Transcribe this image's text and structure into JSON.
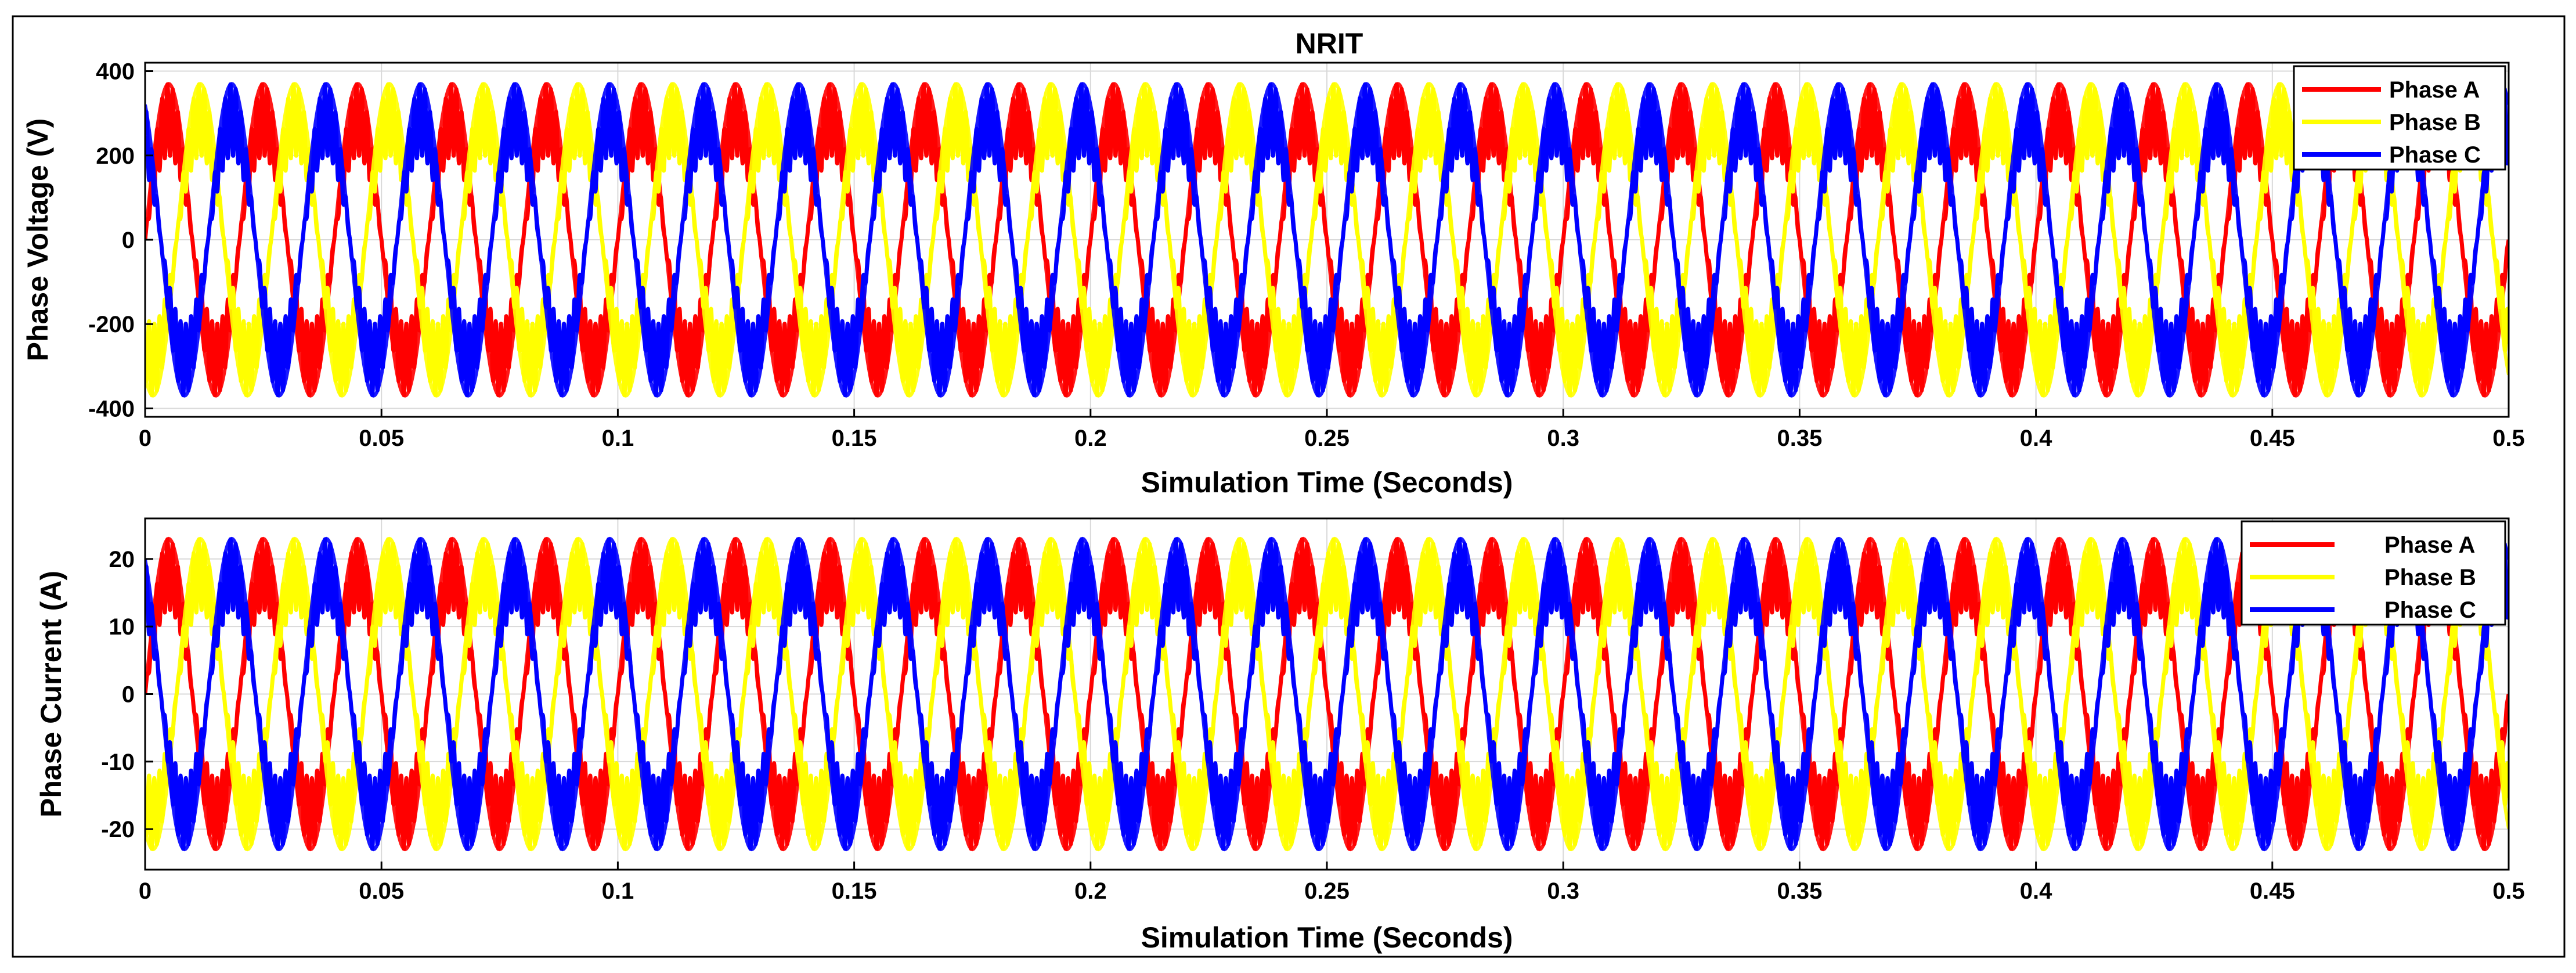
{
  "chart_data": [
    {
      "type": "line",
      "title": "NRIT",
      "xlabel": "Simulation Time (Seconds)",
      "ylabel": "Phase Voltage (V)",
      "xlim": [
        0,
        0.5
      ],
      "ylim": [
        -420,
        420
      ],
      "xticks": [
        0,
        0.05,
        0.1,
        0.15,
        0.2,
        0.25,
        0.3,
        0.35,
        0.4,
        0.45,
        0.5
      ],
      "xtick_labels": [
        "0",
        "0.05",
        "0.1",
        "0.15",
        "0.2",
        "0.25",
        "0.3",
        "0.35",
        "0.4",
        "0.45",
        "0.5"
      ],
      "yticks": [
        400,
        200,
        0,
        -200,
        -400
      ],
      "ytick_labels": [
        "400",
        "200",
        "0",
        "-200",
        "-400"
      ],
      "grid": true,
      "legend_position": "top-right",
      "frequency_hz": 50,
      "series": [
        {
          "name": "Phase A",
          "color": "#ff0000",
          "amplitude_peak": 370,
          "amplitude_inner": 200,
          "phase_deg": 0
        },
        {
          "name": "Phase B",
          "color": "#ffff00",
          "amplitude_peak": 370,
          "amplitude_inner": 200,
          "phase_deg": -120
        },
        {
          "name": "Phase C",
          "color": "#0000ff",
          "amplitude_peak": 370,
          "amplitude_inner": 200,
          "phase_deg": 120
        }
      ]
    },
    {
      "type": "line",
      "title": "",
      "xlabel": "Simulation Time (Seconds)",
      "ylabel": "Phase Current (A)",
      "xlim": [
        0,
        0.5
      ],
      "ylim": [
        -26,
        26
      ],
      "xticks": [
        0,
        0.05,
        0.1,
        0.15,
        0.2,
        0.25,
        0.3,
        0.35,
        0.4,
        0.45,
        0.5
      ],
      "xtick_labels": [
        "0",
        "0.05",
        "0.1",
        "0.15",
        "0.2",
        "0.25",
        "0.3",
        "0.35",
        "0.4",
        "0.45",
        "0.5"
      ],
      "yticks": [
        20,
        10,
        0,
        -10,
        -20
      ],
      "ytick_labels": [
        "20",
        "10",
        "0",
        "-10",
        "-20"
      ],
      "grid": true,
      "legend_position": "top-right",
      "frequency_hz": 50,
      "series": [
        {
          "name": "Phase A",
          "color": "#ff0000",
          "amplitude_peak": 23,
          "amplitude_inner": 12.5,
          "phase_deg": 0
        },
        {
          "name": "Phase B",
          "color": "#ffff00",
          "amplitude_peak": 23,
          "amplitude_inner": 12.5,
          "phase_deg": -120
        },
        {
          "name": "Phase C",
          "color": "#0000ff",
          "amplitude_peak": 23,
          "amplitude_inner": 12.5,
          "phase_deg": 120
        }
      ]
    }
  ]
}
